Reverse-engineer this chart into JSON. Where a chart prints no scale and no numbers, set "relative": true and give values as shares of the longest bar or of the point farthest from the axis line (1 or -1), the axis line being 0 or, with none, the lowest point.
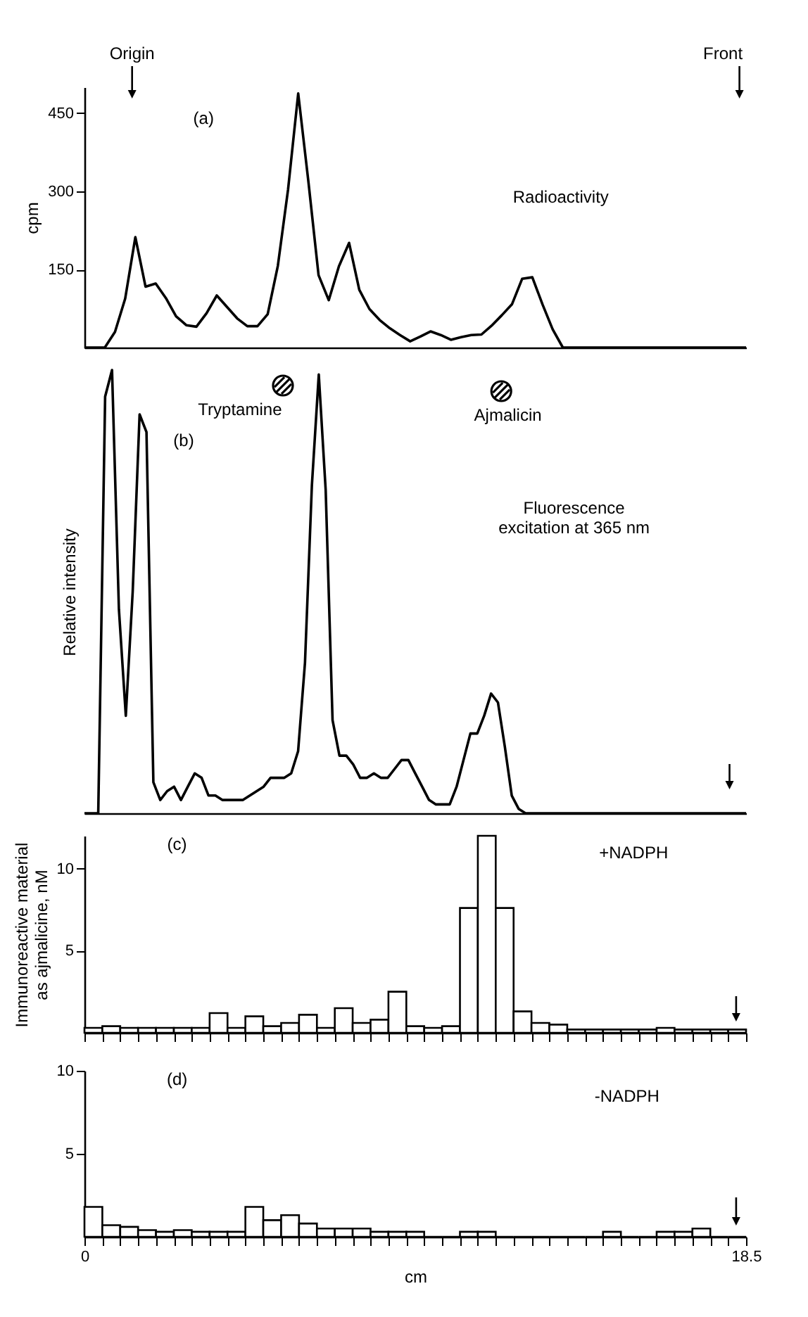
{
  "chart_data": [
    {
      "type": "line",
      "ylabel": "cpm",
      "ylim": [
        0,
        500
      ],
      "yticks": [
        150,
        300,
        450
      ],
      "tick_labels": "y",
      "annotations": [
        "Origin",
        "Front",
        "(a)",
        "Radioactivity"
      ],
      "categories": [
        null,
        null,
        null,
        null,
        null,
        null,
        null,
        null,
        null,
        null,
        null,
        null,
        null,
        null,
        null,
        null,
        null,
        null,
        null,
        null,
        null,
        null,
        null,
        null,
        null,
        null,
        null,
        null,
        null,
        null,
        null,
        null,
        null,
        null,
        null,
        null,
        null,
        null,
        null,
        null,
        null,
        null,
        null,
        null,
        null,
        null,
        null,
        null,
        null,
        null,
        null,
        null,
        null,
        null,
        null,
        null,
        null,
        null,
        null,
        null,
        null,
        null,
        null,
        null,
        null,
        null
      ],
      "series": [
        {
          "color": "#000000",
          "values": [
            0,
            0,
            0,
            30,
            94,
            212,
            117,
            123,
            95,
            60,
            43,
            40,
            66,
            100,
            78,
            56,
            41,
            41,
            64,
            157,
            303,
            488,
            319,
            139,
            91,
            156,
            201,
            111,
            74,
            53,
            37,
            24,
            12,
            21,
            31,
            24,
            15,
            20,
            24,
            25,
            42,
            62,
            83,
            132,
            135,
            83,
            35,
            0,
            0,
            0,
            0,
            0,
            0,
            0,
            0,
            0,
            0,
            0,
            0,
            0,
            0,
            0,
            0,
            0,
            0,
            0
          ]
        }
      ]
    },
    {
      "type": "line",
      "relative": true,
      "ylabel": "Relative intensity",
      "tick_labels": false,
      "annotations": [
        "(b)",
        "Tryptamine",
        "Ajmalicin",
        "Fluorescence excitation at 365 nm"
      ],
      "categories": [
        null,
        null,
        null,
        null,
        null,
        null,
        null,
        null,
        null,
        null,
        null,
        null,
        null,
        null,
        null,
        null,
        null,
        null,
        null,
        null,
        null,
        null,
        null,
        null,
        null,
        null,
        null,
        null,
        null,
        null,
        null,
        null,
        null,
        null,
        null,
        null,
        null,
        null,
        null,
        null,
        null,
        null,
        null,
        null,
        null,
        null,
        null,
        null,
        null,
        null,
        null,
        null,
        null,
        null,
        null,
        null,
        null,
        null,
        null,
        null,
        null,
        null,
        null,
        null,
        null,
        null,
        null,
        null,
        null,
        null,
        null,
        null,
        null,
        null,
        null,
        null,
        null,
        null,
        null,
        null,
        null,
        null,
        null,
        null,
        null,
        null,
        null,
        null,
        null,
        null,
        null,
        null,
        null,
        null,
        null,
        null,
        null
      ],
      "series": [
        {
          "color": "#000000",
          "values": [
            0,
            0,
            0,
            0.94,
            1,
            0.46,
            0.22,
            0.5,
            0.9,
            0.86,
            0.07,
            0.03,
            0.05,
            0.06,
            0.03,
            0.06,
            0.09,
            0.08,
            0.04,
            0.04,
            0.03,
            0.03,
            0.03,
            0.03,
            0.04,
            0.05,
            0.06,
            0.08,
            0.08,
            0.08,
            0.09,
            0.14,
            0.34,
            0.74,
            0.99,
            0.73,
            0.21,
            0.13,
            0.13,
            0.11,
            0.08,
            0.08,
            0.09,
            0.08,
            0.08,
            0.1,
            0.12,
            0.12,
            0.09,
            0.06,
            0.03,
            0.02,
            0.02,
            0.02,
            0.06,
            0.12,
            0.18,
            0.18,
            0.22,
            0.27,
            0.25,
            0.15,
            0.04,
            0.01,
            0,
            0,
            0,
            0,
            0,
            0,
            0,
            0,
            0,
            0,
            0,
            0,
            0,
            0,
            0,
            0,
            0,
            0,
            0,
            0,
            0,
            0,
            0,
            0,
            0,
            0,
            0,
            0,
            0,
            0,
            0,
            0,
            0
          ]
        }
      ]
    },
    {
      "type": "histogram",
      "ylabel": "Immunoreactive material as ajmalicine, nM",
      "xlim": [
        0,
        18.5
      ],
      "ylim": [
        0,
        12
      ],
      "yticks": [
        5,
        10
      ],
      "tick_labels": "y",
      "annotations": [
        "(c)",
        "+NADPH"
      ],
      "xticks": [
        {
          "value": 0,
          "label": null
        },
        {
          "value": 0.5,
          "label": null
        },
        {
          "value": 1,
          "label": null
        },
        {
          "value": 1.5,
          "label": null
        },
        {
          "value": 2,
          "label": null
        },
        {
          "value": 2.5,
          "label": null
        },
        {
          "value": 3,
          "label": null
        },
        {
          "value": 3.5,
          "label": null
        },
        {
          "value": 4,
          "label": null
        },
        {
          "value": 4.5,
          "label": null
        },
        {
          "value": 5,
          "label": null
        },
        {
          "value": 5.5,
          "label": null
        },
        {
          "value": 6,
          "label": null
        },
        {
          "value": 6.5,
          "label": null
        },
        {
          "value": 7,
          "label": null
        },
        {
          "value": 7.5,
          "label": null
        },
        {
          "value": 8,
          "label": null
        },
        {
          "value": 8.5,
          "label": null
        },
        {
          "value": 9,
          "label": null
        },
        {
          "value": 9.5,
          "label": null
        },
        {
          "value": 10,
          "label": null
        },
        {
          "value": 10.5,
          "label": null
        },
        {
          "value": 11,
          "label": null
        },
        {
          "value": 11.5,
          "label": null
        },
        {
          "value": 12,
          "label": null
        },
        {
          "value": 12.5,
          "label": null
        },
        {
          "value": 13,
          "label": null
        },
        {
          "value": 13.5,
          "label": null
        },
        {
          "value": 14,
          "label": null
        },
        {
          "value": 14.5,
          "label": null
        },
        {
          "value": 15,
          "label": null
        },
        {
          "value": 15.5,
          "label": null
        },
        {
          "value": 16,
          "label": null
        },
        {
          "value": 16.5,
          "label": null
        },
        {
          "value": 17,
          "label": null
        },
        {
          "value": 17.5,
          "label": null
        },
        {
          "value": 18,
          "label": null
        },
        {
          "value": 18.5,
          "label": null
        }
      ],
      "bins": [
        0,
        0.5,
        1,
        1.5,
        2,
        2.5,
        3,
        3.5,
        4,
        4.5,
        5,
        5.5,
        6,
        6.5,
        7,
        7.5,
        8,
        8.5,
        9,
        9.5,
        10,
        10.5,
        11,
        11.5,
        12,
        12.5,
        13,
        13.5,
        14,
        14.5,
        15,
        15.5,
        16,
        16.5,
        17,
        17.5,
        18,
        18.5
      ],
      "values": [
        0.3,
        0.4,
        0.3,
        0.3,
        0.3,
        0.3,
        0.3,
        1.2,
        0.3,
        1.0,
        0.4,
        0.6,
        1.1,
        0.3,
        1.5,
        0.6,
        0.8,
        2.5,
        0.4,
        0.3,
        0.4,
        7.6,
        12,
        7.6,
        1.3,
        0.6,
        0.5,
        0.2,
        0.2,
        0.2,
        0.2,
        0.2,
        0.3,
        0.2,
        0.2,
        0.2,
        0.2
      ]
    },
    {
      "type": "histogram",
      "xlabel": "cm",
      "xlim": [
        0,
        18.5
      ],
      "ylim": [
        0,
        10
      ],
      "yticks": [
        5,
        10
      ],
      "annotations": [
        "(d)",
        "-NADPH"
      ],
      "xticks": [
        0,
        {
          "value": 0.5,
          "label": null
        },
        {
          "value": 1,
          "label": null
        },
        {
          "value": 1.5,
          "label": null
        },
        {
          "value": 2,
          "label": null
        },
        {
          "value": 2.5,
          "label": null
        },
        {
          "value": 3,
          "label": null
        },
        {
          "value": 3.5,
          "label": null
        },
        {
          "value": 4,
          "label": null
        },
        {
          "value": 4.5,
          "label": null
        },
        {
          "value": 5,
          "label": null
        },
        {
          "value": 5.5,
          "label": null
        },
        {
          "value": 6,
          "label": null
        },
        {
          "value": 6.5,
          "label": null
        },
        {
          "value": 7,
          "label": null
        },
        {
          "value": 7.5,
          "label": null
        },
        {
          "value": 8,
          "label": null
        },
        {
          "value": 8.5,
          "label": null
        },
        {
          "value": 9,
          "label": null
        },
        {
          "value": 9.5,
          "label": null
        },
        {
          "value": 10,
          "label": null
        },
        {
          "value": 10.5,
          "label": null
        },
        {
          "value": 11,
          "label": null
        },
        {
          "value": 11.5,
          "label": null
        },
        {
          "value": 12,
          "label": null
        },
        {
          "value": 12.5,
          "label": null
        },
        {
          "value": 13,
          "label": null
        },
        {
          "value": 13.5,
          "label": null
        },
        {
          "value": 14,
          "label": null
        },
        {
          "value": 14.5,
          "label": null
        },
        {
          "value": 15,
          "label": null
        },
        {
          "value": 15.5,
          "label": null
        },
        {
          "value": 16,
          "label": null
        },
        {
          "value": 16.5,
          "label": null
        },
        {
          "value": 17,
          "label": null
        },
        {
          "value": 17.5,
          "label": null
        },
        {
          "value": 18,
          "label": null
        },
        18.5
      ],
      "bins": [
        0,
        0.5,
        1,
        1.5,
        2,
        2.5,
        3,
        3.5,
        4,
        4.5,
        5,
        5.5,
        6,
        6.5,
        7,
        7.5,
        8,
        8.5,
        9,
        9.5,
        10,
        10.5,
        11,
        11.5,
        12,
        12.5,
        13,
        13.5,
        14,
        14.5,
        15,
        15.5,
        16,
        16.5,
        17,
        17.5,
        18,
        18.5
      ],
      "values": [
        1.8,
        0.7,
        0.6,
        0.4,
        0.3,
        0.4,
        0.3,
        0.3,
        0.3,
        1.8,
        1.0,
        1.3,
        0.8,
        0.5,
        0.5,
        0.5,
        0.3,
        0.3,
        0.3,
        0,
        0,
        0.3,
        0.3,
        0,
        0,
        0,
        0,
        0,
        0,
        0.3,
        0,
        0,
        0.3,
        0.3,
        0.5,
        0,
        0
      ]
    }
  ]
}
